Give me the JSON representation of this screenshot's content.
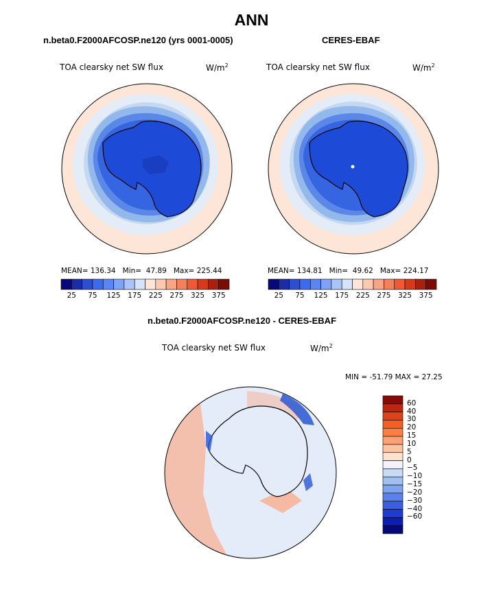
{
  "page_title": "ANN",
  "colors": {
    "ocean_far": "#fde6d8",
    "ring_pale": "#e3ecf7",
    "ring_light": "#c4d9f1",
    "ring_mid": "#93b8ec",
    "ring_blue": "#5b88e8",
    "ring_deep": "#3565e0",
    "ice": "#1e4ad8",
    "ice_core": "#1a3ec2",
    "coast": "#000000",
    "diff_neutral": "#e3ecf8",
    "diff_warm": "#f6b59a",
    "diff_cool": "#2a56d4"
  },
  "chart_data": [
    {
      "type": "heatmap",
      "projection": "south-polar-stereographic",
      "case_title": "n.beta0.F2000AFCOSP.ne120 (yrs 0001-0005)",
      "variable": "TOA clearsky net SW flux",
      "units": "W/m",
      "units_exp": "2",
      "mean_label": "MEAN=",
      "mean": "136.34",
      "min_label": "Min=",
      "min": "47.89",
      "max_label": "Max=",
      "max": "225.44",
      "colorbar": {
        "colors": [
          "#08087a",
          "#1c2ba6",
          "#2e4ed2",
          "#3c6bf0",
          "#5a86f5",
          "#7ea3f7",
          "#a9c4f8",
          "#d6e4fa",
          "#fde6d8",
          "#fbc8b0",
          "#f8a585",
          "#f5805c",
          "#ef5a35",
          "#d63a1a",
          "#a8200f",
          "#7a0b05"
        ],
        "tick_labels": [
          "25",
          "75",
          "125",
          "175",
          "225",
          "275",
          "325",
          "375"
        ]
      }
    },
    {
      "type": "heatmap",
      "projection": "south-polar-stereographic",
      "case_title": "CERES-EBAF",
      "variable": "TOA clearsky net SW flux",
      "units": "W/m",
      "units_exp": "2",
      "mean_label": "MEAN=",
      "mean": "134.81",
      "min_label": "Min=",
      "min": "49.62",
      "max_label": "Max=",
      "max": "224.17",
      "colorbar": {
        "colors": [
          "#08087a",
          "#1c2ba6",
          "#2e4ed2",
          "#3c6bf0",
          "#5a86f5",
          "#7ea3f7",
          "#a9c4f8",
          "#d6e4fa",
          "#fde6d8",
          "#fbc8b0",
          "#f8a585",
          "#f5805c",
          "#ef5a35",
          "#d63a1a",
          "#a8200f",
          "#7a0b05"
        ],
        "tick_labels": [
          "25",
          "75",
          "125",
          "175",
          "225",
          "275",
          "325",
          "375"
        ]
      }
    },
    {
      "type": "heatmap",
      "projection": "south-polar-stereographic",
      "case_title": "n.beta0.F2000AFCOSP.ne120 - CERES-EBAF",
      "variable": "TOA clearsky net SW flux",
      "units": "W/m",
      "units_exp": "2",
      "minmax_label": "MIN = -51.79 MAX =  27.25",
      "min": -51.79,
      "max": 27.25,
      "colorbar": {
        "orientation": "vertical",
        "levels": [
          60,
          40,
          30,
          20,
          15,
          10,
          5,
          0,
          -5,
          -10,
          -15,
          -20,
          -30,
          -40,
          -60
        ],
        "tick_labels": [
          "60",
          "40",
          "30",
          "20",
          "15",
          "10",
          "5",
          "0",
          "−5",
          "−10",
          "−15",
          "−20",
          "−30",
          "−40",
          "−60"
        ],
        "colors": [
          "#8a0a08",
          "#c02510",
          "#e04218",
          "#f55e24",
          "#fb7f42",
          "#fba072",
          "#fcc3a2",
          "#fde2d0",
          "#f1f3f8",
          "#c9daf3",
          "#a1c0f0",
          "#7ea3ef",
          "#5a82ea",
          "#3a5fe2",
          "#1e3dd0",
          "#0c1fb0",
          "#05087a"
        ]
      }
    }
  ]
}
